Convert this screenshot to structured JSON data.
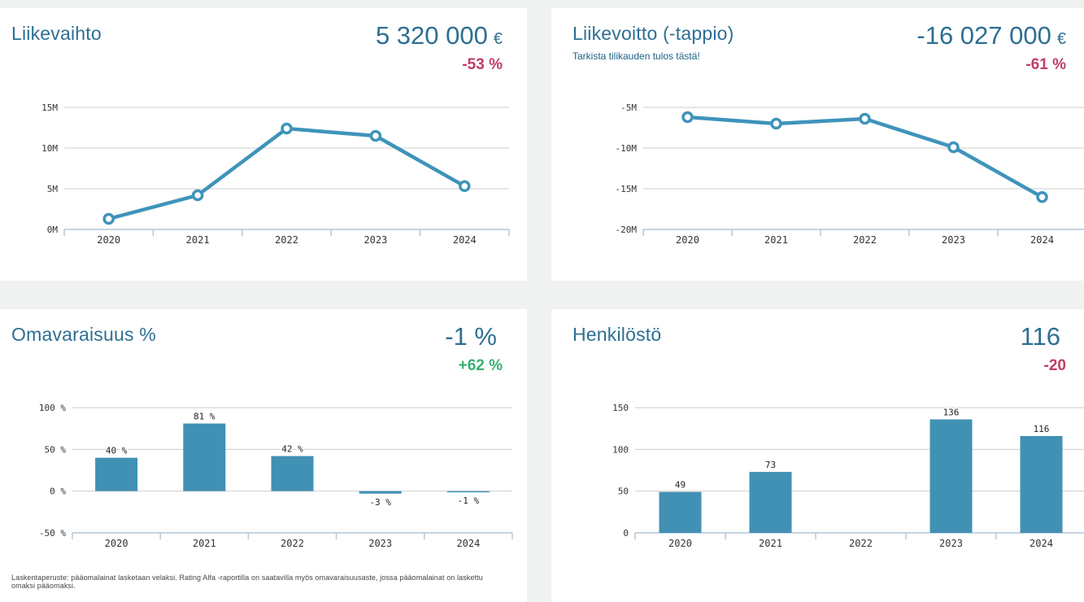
{
  "colors": {
    "background": "#f0f1f1",
    "card": "#ffffff",
    "accent_blue": "#2d6f93",
    "negative": "#c13d63",
    "positive": "#36b070",
    "line": "#3f93ba",
    "bar": "#4191b4",
    "grid": "#cccccc",
    "axis": "#b3c6d8",
    "tick_text": "#333333",
    "subtitle_link": "#1b6286"
  },
  "panels": [
    {
      "title": "Liikevaihto",
      "value": "5 320 000",
      "unit": "€",
      "change": "-53 %"
    },
    {
      "title": "Liikevoitto (-tappio)",
      "subtitle": "Tarkista tilikauden tulos tästä!",
      "value": "-16 027 000",
      "unit": "€",
      "change": "-61 %"
    },
    {
      "title": "Omavaraisuus %",
      "value": "-1 %",
      "unit": "",
      "change": "+62 %",
      "footnote": "Laskentaperuste: pääomalainat lasketaan velaksi. Rating Alfa -raportilla on saatavilla myös omavaraisuusaste, jossa pääomalainat on laskettu omaksi pääomaksi."
    },
    {
      "title": "Henkilöstö",
      "value": "116",
      "unit": "",
      "change": "-20"
    }
  ],
  "chart_data": [
    {
      "type": "line",
      "title": "Liikevaihto",
      "categories": [
        "2020",
        "2021",
        "2022",
        "2023",
        "2024"
      ],
      "values": [
        1300000,
        4200000,
        12400000,
        11500000,
        5320000
      ],
      "ylim": [
        0,
        16000000
      ],
      "yticks": [
        {
          "v": 0,
          "label": "0M"
        },
        {
          "v": 5000000,
          "label": "5M"
        },
        {
          "v": 10000000,
          "label": "10M"
        },
        {
          "v": 15000000,
          "label": "15M"
        }
      ],
      "grid": true,
      "legend": "none"
    },
    {
      "type": "line",
      "title": "Liikevoitto (-tappio)",
      "categories": [
        "2020",
        "2021",
        "2022",
        "2023",
        "2024"
      ],
      "values": [
        -6200000,
        -7000000,
        -6400000,
        -9900000,
        -16027000
      ],
      "ylim": [
        -20000000,
        -4000000
      ],
      "yticks": [
        {
          "v": -20000000,
          "label": "-20M"
        },
        {
          "v": -15000000,
          "label": "-15M"
        },
        {
          "v": -10000000,
          "label": "-10M"
        },
        {
          "v": -5000000,
          "label": "-5M"
        }
      ],
      "grid": true,
      "legend": "none"
    },
    {
      "type": "bar",
      "title": "Omavaraisuus %",
      "categories": [
        "2020",
        "2021",
        "2022",
        "2023",
        "2024"
      ],
      "values": [
        40,
        81,
        42,
        -3,
        -1
      ],
      "value_labels": [
        "40 %",
        "81 %",
        "42 %",
        "-3 %",
        "-1 %"
      ],
      "ylim": [
        -50,
        104
      ],
      "yticks": [
        {
          "v": -50,
          "label": "-50 %"
        },
        {
          "v": 0,
          "label": "0 %"
        },
        {
          "v": 50,
          "label": "50 %"
        },
        {
          "v": 100,
          "label": "100 %"
        }
      ],
      "grid": true,
      "legend": "none"
    },
    {
      "type": "bar",
      "title": "Henkilöstö",
      "categories": [
        "2020",
        "2021",
        "2022",
        "2023",
        "2024"
      ],
      "values": [
        49,
        73,
        null,
        136,
        116
      ],
      "value_labels": [
        "49",
        "73",
        null,
        "136",
        "116"
      ],
      "ylim": [
        0,
        154
      ],
      "yticks": [
        {
          "v": 0,
          "label": "0"
        },
        {
          "v": 50,
          "label": "50"
        },
        {
          "v": 100,
          "label": "100"
        },
        {
          "v": 150,
          "label": "150"
        }
      ],
      "grid": true,
      "legend": "none"
    }
  ]
}
